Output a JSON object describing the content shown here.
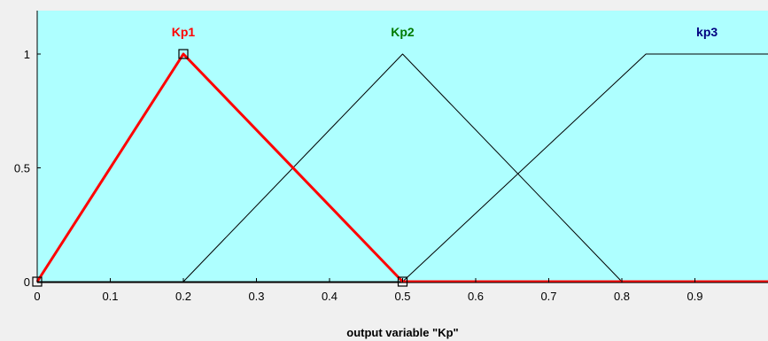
{
  "chart_data": {
    "type": "line",
    "title": "",
    "xlabel": "output variable \"Kp\"",
    "ylabel": "",
    "xlim": [
      0,
      1
    ],
    "ylim": [
      0,
      1
    ],
    "grid": false,
    "background_color": "#aeffff",
    "x_ticks": [
      {
        "value": 0,
        "label": "0"
      },
      {
        "value": 0.1,
        "label": "0.1"
      },
      {
        "value": 0.2,
        "label": "0.2"
      },
      {
        "value": 0.3,
        "label": "0.3"
      },
      {
        "value": 0.4,
        "label": "0.4"
      },
      {
        "value": 0.5,
        "label": "0.5"
      },
      {
        "value": 0.6,
        "label": "0.6"
      },
      {
        "value": 0.7,
        "label": "0.7"
      },
      {
        "value": 0.8,
        "label": "0.8"
      },
      {
        "value": 0.9,
        "label": "0.9"
      }
    ],
    "y_ticks": [
      {
        "value": 0,
        "label": "0"
      },
      {
        "value": 0.5,
        "label": "0.5"
      },
      {
        "value": 1,
        "label": "1"
      }
    ],
    "series": [
      {
        "name": "Kp1",
        "color": "#ff0000",
        "selected": true,
        "x": [
          0,
          0.2,
          0.5,
          1
        ],
        "y": [
          0,
          1,
          0,
          0
        ],
        "handles": [
          0,
          0.2,
          0.5
        ]
      },
      {
        "name": "Kp2",
        "color": "#000000",
        "selected": false,
        "x": [
          0,
          0.2,
          0.5,
          0.8,
          1
        ],
        "y": [
          0,
          0,
          1,
          0,
          0
        ]
      },
      {
        "name": "kp3",
        "color": "#000000",
        "selected": false,
        "x": [
          0,
          0.5,
          0.833,
          1
        ],
        "y": [
          0,
          0,
          1,
          1
        ]
      }
    ],
    "mf_label_colors": {
      "Kp1": "#ff0000",
      "Kp2": "#007a00",
      "kp3": "#000080"
    }
  }
}
